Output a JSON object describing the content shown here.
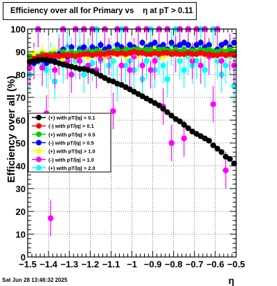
{
  "chart_data": {
    "type": "scatter",
    "title": "Efficiency over all for Primary vs    η at pT > 0.11",
    "xlabel": "η",
    "ylabel": "Efficiency over all (%)",
    "xlim": [
      -1.5,
      -0.5
    ],
    "ylim": [
      0,
      100
    ],
    "x_ticks": [
      "-1.5",
      "-1.4",
      "-1.3",
      "-1.2",
      "-1.1",
      "-1",
      "-0.9",
      "-0.8",
      "-0.7",
      "-0.6",
      "-0.5"
    ],
    "y_ticks": [
      "0",
      "10",
      "20",
      "30",
      "40",
      "50",
      "60",
      "70",
      "80",
      "90",
      "100"
    ],
    "grid": true,
    "legend_placement": "middle-left",
    "series": [
      {
        "name": "(+) with pT/|q| > 0.1",
        "color": "#000000",
        "err": 0.5,
        "x": [
          -1.49,
          -1.47,
          -1.45,
          -1.43,
          -1.41,
          -1.39,
          -1.37,
          -1.35,
          -1.33,
          -1.31,
          -1.29,
          -1.27,
          -1.25,
          -1.23,
          -1.21,
          -1.19,
          -1.17,
          -1.15,
          -1.13,
          -1.11,
          -1.09,
          -1.07,
          -1.05,
          -1.03,
          -1.01,
          -0.99,
          -0.97,
          -0.95,
          -0.93,
          -0.91,
          -0.89,
          -0.87,
          -0.85,
          -0.83,
          -0.81,
          -0.79,
          -0.77,
          -0.75,
          -0.73,
          -0.71,
          -0.69,
          -0.67,
          -0.65,
          -0.63,
          -0.61,
          -0.59,
          -0.57,
          -0.55,
          -0.53,
          -0.51
        ],
        "y": [
          85.5,
          86,
          86.5,
          86.5,
          86.5,
          86,
          85.5,
          85,
          84.5,
          84,
          83.5,
          83,
          82.5,
          82.5,
          82,
          81.5,
          80.5,
          79.5,
          78.5,
          77.5,
          77,
          76,
          75.5,
          74.5,
          73.5,
          72.5,
          71.5,
          70.5,
          69.5,
          68.5,
          67.5,
          66.5,
          65,
          63.5,
          62,
          60.5,
          59.5,
          58,
          56.5,
          55,
          54,
          53,
          52,
          51,
          49,
          47.5,
          46,
          44,
          43,
          41
        ]
      },
      {
        "name": "(-) with pT/|q| > 0.1",
        "color": "#ff0000",
        "err": 0.8,
        "x": [
          -1.49,
          -1.47,
          -1.45,
          -1.43,
          -1.41,
          -1.39,
          -1.37,
          -1.35,
          -1.33,
          -1.31,
          -1.29,
          -1.27,
          -1.25,
          -1.23,
          -1.21,
          -1.19,
          -1.17,
          -1.15,
          -1.13,
          -1.11,
          -1.09,
          -1.07,
          -1.05,
          -1.03,
          -1.01,
          -0.99,
          -0.97,
          -0.95,
          -0.93,
          -0.91,
          -0.89,
          -0.87,
          -0.85,
          -0.83,
          -0.81,
          -0.79,
          -0.77,
          -0.75,
          -0.73,
          -0.71,
          -0.69,
          -0.67,
          -0.65,
          -0.63,
          -0.61,
          -0.59,
          -0.57,
          -0.55,
          -0.53,
          -0.51
        ],
        "y": [
          86,
          87,
          87.5,
          88,
          88.5,
          88,
          88.5,
          88,
          88.5,
          88.5,
          88.5,
          88,
          88.5,
          89,
          89,
          88.5,
          89,
          89,
          89,
          89.5,
          89.5,
          89,
          89.5,
          89,
          89.5,
          90,
          89.5,
          89.5,
          89,
          89,
          89.5,
          89,
          89.5,
          89.5,
          89,
          89.5,
          89,
          89,
          89.5,
          89,
          89,
          89.5,
          89,
          89,
          88.5,
          88.5,
          89,
          88.5,
          89,
          88.5
        ]
      },
      {
        "name": "(+) with pT/|q| > 0.5",
        "color": "#00cc00",
        "err": 1.2,
        "x": [
          -1.49,
          -1.47,
          -1.45,
          -1.43,
          -1.41,
          -1.39,
          -1.37,
          -1.35,
          -1.33,
          -1.31,
          -1.29,
          -1.27,
          -1.25,
          -1.23,
          -1.21,
          -1.19,
          -1.17,
          -1.15,
          -1.13,
          -1.11,
          -1.09,
          -1.07,
          -1.05,
          -1.03,
          -1.01,
          -0.99,
          -0.97,
          -0.95,
          -0.93,
          -0.91,
          -0.89,
          -0.87,
          -0.85,
          -0.83,
          -0.81,
          -0.79,
          -0.77,
          -0.75,
          -0.73,
          -0.71,
          -0.69,
          -0.67,
          -0.65,
          -0.63,
          -0.61,
          -0.59,
          -0.57,
          -0.55,
          -0.53,
          -0.51
        ],
        "y": [
          88,
          87,
          88,
          89,
          88,
          89,
          89,
          88,
          90,
          89,
          90,
          89,
          90,
          89.5,
          90,
          90,
          90.5,
          90,
          89.5,
          90,
          90,
          91,
          90,
          91,
          90.5,
          91,
          91,
          90.5,
          91,
          91,
          90,
          91,
          91,
          90.5,
          90,
          91,
          90,
          91,
          90,
          90.5,
          90,
          91,
          90.5,
          91,
          90,
          90,
          90.5,
          90,
          91,
          90
        ]
      },
      {
        "name": "(-) with pT/|q| > 0.5",
        "color": "#0000ff",
        "err": 1.5,
        "x": [
          -1.49,
          -1.47,
          -1.45,
          -1.43,
          -1.41,
          -1.39,
          -1.37,
          -1.35,
          -1.33,
          -1.31,
          -1.29,
          -1.27,
          -1.25,
          -1.23,
          -1.21,
          -1.19,
          -1.17,
          -1.15,
          -1.13,
          -1.11,
          -1.09,
          -1.07,
          -1.05,
          -1.03,
          -1.01,
          -0.99,
          -0.97,
          -0.95,
          -0.93,
          -0.91,
          -0.89,
          -0.87,
          -0.85,
          -0.83,
          -0.81,
          -0.79,
          -0.77,
          -0.75,
          -0.73,
          -0.71,
          -0.69,
          -0.67,
          -0.65,
          -0.63,
          -0.61,
          -0.59,
          -0.57,
          -0.55,
          -0.53,
          -0.51
        ],
        "y": [
          86,
          85,
          86,
          87,
          85,
          87,
          86,
          89,
          91,
          88,
          92,
          89,
          91,
          92,
          90,
          92,
          91,
          93,
          91,
          92,
          90,
          93,
          92,
          91,
          93,
          92,
          91,
          94,
          92,
          93,
          94,
          92,
          93,
          91,
          94,
          92,
          93,
          94,
          93,
          91,
          93,
          94,
          92,
          93,
          90,
          91,
          93,
          94,
          92,
          94
        ]
      },
      {
        "name": "(+) with pT/|q| > 1.0",
        "color": "#ffff00",
        "err": 3,
        "x": [
          -1.49,
          -1.47,
          -1.45,
          -1.43,
          -1.41,
          -1.39,
          -1.37,
          -1.35,
          -1.33,
          -1.31,
          -1.29,
          -1.27,
          -1.25,
          -1.23,
          -1.21,
          -1.19,
          -1.17,
          -1.15,
          -1.13,
          -1.11,
          -1.09,
          -1.07,
          -1.05,
          -1.03,
          -1.01,
          -0.99,
          -0.97,
          -0.95,
          -0.93,
          -0.91,
          -0.89,
          -0.87,
          -0.85,
          -0.83,
          -0.81,
          -0.79,
          -0.77,
          -0.75,
          -0.73,
          -0.71,
          -0.69,
          -0.67,
          -0.65,
          -0.63,
          -0.61,
          -0.59,
          -0.57,
          -0.55,
          -0.53,
          -0.51
        ],
        "y": [
          88,
          89,
          87,
          90,
          88,
          89,
          90,
          88,
          87,
          89,
          90,
          88,
          91,
          89,
          88,
          90,
          89,
          91,
          88,
          90,
          89,
          91,
          90,
          88,
          90,
          91,
          89,
          90,
          92,
          89,
          91,
          90,
          88,
          90,
          91,
          90,
          89,
          91,
          90,
          89,
          91,
          90,
          89,
          91,
          90,
          89,
          90,
          91,
          89,
          90
        ]
      },
      {
        "name": "(-) with pT/|q| > 1.0",
        "color": "#ff00ff",
        "err": 8,
        "x": [
          -1.49,
          -1.47,
          -1.45,
          -1.43,
          -1.41,
          -1.39,
          -1.37,
          -1.35,
          -1.33,
          -1.31,
          -1.29,
          -1.27,
          -1.25,
          -1.23,
          -1.21,
          -1.19,
          -1.17,
          -1.15,
          -1.13,
          -1.11,
          -1.09,
          -1.07,
          -1.05,
          -1.03,
          -1.01,
          -0.99,
          -0.97,
          -0.95,
          -0.93,
          -0.91,
          -0.89,
          -0.87,
          -0.85,
          -0.83,
          -0.81,
          -0.79,
          -0.77,
          -0.75,
          -0.73,
          -0.71,
          -0.69,
          -0.67,
          -0.65,
          -0.63,
          -0.61,
          -0.59,
          -0.57,
          -0.55,
          -0.53,
          -0.51
        ],
        "y": [
          83,
          86,
          100,
          83,
          63,
          17,
          82,
          88,
          100,
          86,
          80,
          100,
          86,
          100,
          84,
          100,
          82,
          87,
          100,
          88,
          64,
          100,
          84,
          100,
          82,
          88,
          100,
          84,
          100,
          82,
          86,
          100,
          66,
          100,
          50,
          89,
          100,
          52,
          100,
          86,
          100,
          84,
          100,
          88,
          67,
          100,
          86,
          38,
          90,
          84
        ]
      },
      {
        "name": "(+) with pT/|q| > 2.0",
        "color": "#00ffff",
        "err": 8,
        "x": [
          -1.49,
          -1.47,
          -1.45,
          -1.43,
          -1.41,
          -1.39,
          -1.37,
          -1.35,
          -1.33,
          -1.31,
          -1.29,
          -1.27,
          -1.25,
          -1.23,
          -1.21,
          -1.19,
          -1.17,
          -1.15,
          -1.13,
          -1.11,
          -1.09,
          -1.07,
          -1.05,
          -1.03,
          -1.01,
          -0.99,
          -0.97,
          -0.95,
          -0.93,
          -0.91,
          -0.89,
          -0.87,
          -0.85,
          -0.83,
          -0.81,
          -0.79,
          -0.77,
          -0.75,
          -0.73,
          -0.71,
          -0.69,
          -0.67,
          -0.65,
          -0.63,
          -0.61,
          -0.59,
          -0.57,
          -0.55,
          -0.53,
          -0.51
        ],
        "y": [
          80,
          86,
          100,
          84,
          82,
          86,
          77,
          90,
          84,
          92,
          88,
          86,
          92,
          80,
          88,
          85,
          100,
          86,
          88,
          84,
          86,
          76,
          100,
          84,
          86,
          82,
          90,
          78,
          86,
          100,
          82,
          88,
          84,
          78,
          92,
          100,
          86,
          82,
          88,
          84,
          86,
          100,
          82,
          88,
          100,
          86,
          80,
          84,
          88,
          75
        ]
      }
    ]
  },
  "footer": {
    "date": "Sat Jun 28 13:46:32 2025"
  }
}
